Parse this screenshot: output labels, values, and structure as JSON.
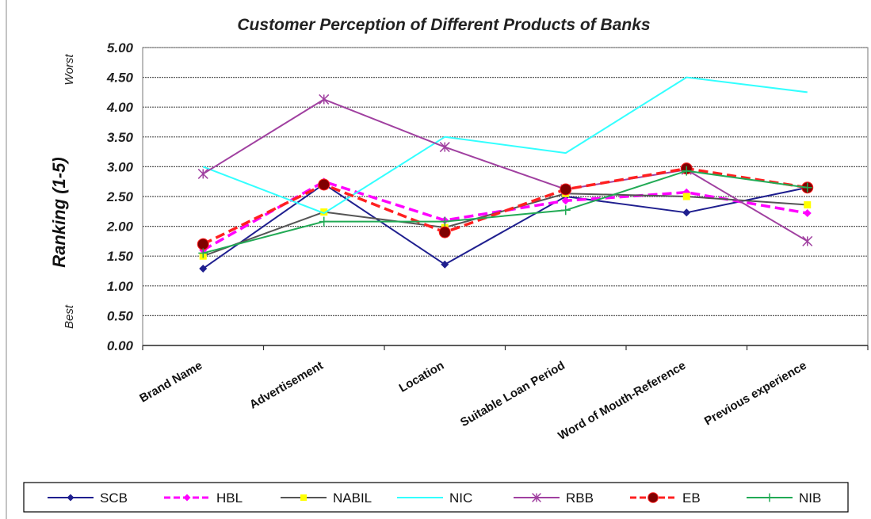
{
  "chart_data": {
    "type": "line",
    "title": "Customer Perception of Different Products of Banks",
    "ylabel": "Ranking (1-5)",
    "y_scale_notes": {
      "top": "Worst",
      "bottom": "Best"
    },
    "categories": [
      "Brand Name",
      "Advertisement",
      "Location",
      "Suitable Loan Period",
      "Word of Mouth-Reference",
      "Previous experience"
    ],
    "ylim": [
      0,
      5
    ],
    "yticks": [
      "0.00",
      "0.50",
      "1.00",
      "1.50",
      "2.00",
      "2.50",
      "3.00",
      "3.50",
      "4.00",
      "4.50",
      "5.00"
    ],
    "grid": true,
    "legend_position": "bottom",
    "series": [
      {
        "name": "SCB",
        "color": "#1f1f8f",
        "marker": "diamond",
        "dash": false,
        "values": [
          1.29,
          2.71,
          1.36,
          2.5,
          2.23,
          2.65
        ]
      },
      {
        "name": "HBL",
        "color": "#ff00ff",
        "marker": "diamond",
        "dash": true,
        "values": [
          1.6,
          2.75,
          2.1,
          2.43,
          2.57,
          2.22
        ]
      },
      {
        "name": "NABIL",
        "color": "#555555",
        "marker": "square",
        "dash": false,
        "values": [
          1.5,
          2.24,
          1.98,
          2.55,
          2.5,
          2.36
        ],
        "marker_color": "#ffff00"
      },
      {
        "name": "NIC",
        "color": "#33ffff",
        "marker": "none",
        "dash": false,
        "values": [
          3.0,
          2.22,
          3.5,
          3.23,
          4.5,
          4.25
        ]
      },
      {
        "name": "RBB",
        "color": "#a040a0",
        "marker": "star",
        "dash": false,
        "values": [
          2.88,
          4.13,
          3.33,
          2.62,
          2.95,
          1.75
        ]
      },
      {
        "name": "EB",
        "color": "#ff2020",
        "marker": "circle",
        "dash": true,
        "values": [
          1.7,
          2.7,
          1.9,
          2.62,
          2.97,
          2.65
        ],
        "marker_color": "#800000"
      },
      {
        "name": "NIB",
        "color": "#22aa55",
        "marker": "plus",
        "dash": false,
        "values": [
          1.55,
          2.08,
          2.08,
          2.27,
          2.93,
          2.65
        ]
      }
    ]
  }
}
